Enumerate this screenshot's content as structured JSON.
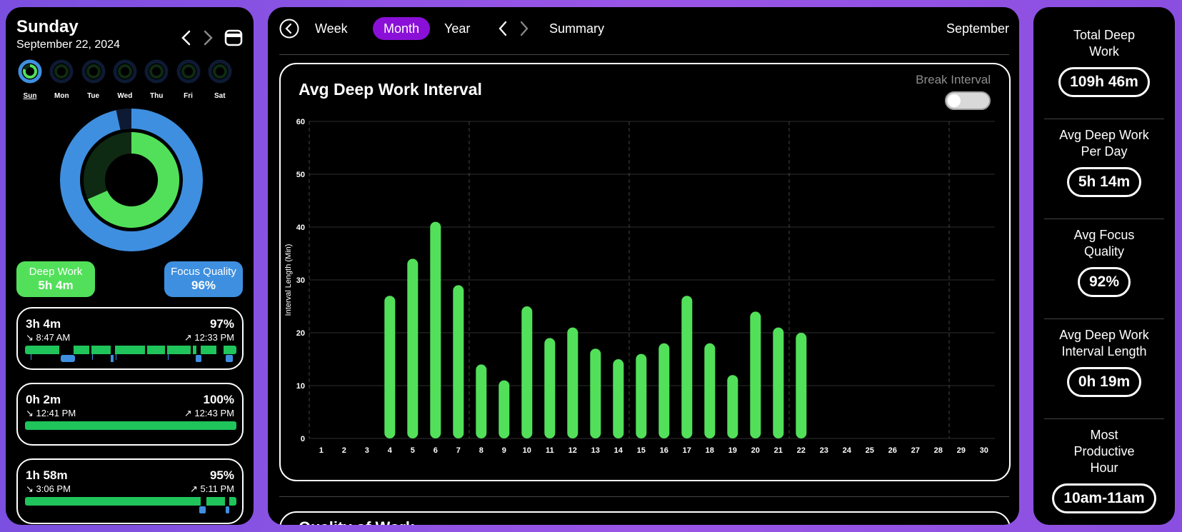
{
  "left": {
    "day_name": "Sunday",
    "date": "September 22, 2024",
    "week": [
      {
        "label": "Sun",
        "active": true
      },
      {
        "label": "Mon",
        "active": false
      },
      {
        "label": "Tue",
        "active": false
      },
      {
        "label": "Wed",
        "active": false
      },
      {
        "label": "Thu",
        "active": false
      },
      {
        "label": "Fri",
        "active": false
      },
      {
        "label": "Sat",
        "active": false
      }
    ],
    "deep_work": {
      "label": "Deep Work",
      "value": "5h 4m"
    },
    "focus_quality": {
      "label": "Focus Quality",
      "value": "96%"
    },
    "sessions": [
      {
        "duration": "3h 4m",
        "percent": "97%",
        "start": "↘ 8:47 AM",
        "end": "↗ 12:33 PM"
      },
      {
        "duration": "0h 2m",
        "percent": "100%",
        "start": "↘ 12:41 PM",
        "end": "↗ 12:43 PM"
      },
      {
        "duration": "1h 58m",
        "percent": "95%",
        "start": "↘ 3:06 PM",
        "end": "↗ 5:11 PM"
      }
    ]
  },
  "main": {
    "tabs": [
      "Week",
      "Month",
      "Year"
    ],
    "active_tab": "Month",
    "summary_label": "Summary",
    "month": "September",
    "card_title": "Avg Deep Work Interval",
    "toggle_label": "Break Interval",
    "second_card_title": "Quality of Work"
  },
  "chart_data": {
    "type": "bar",
    "title": "Avg Deep Work Interval",
    "ylabel": "Interval Length (Min)",
    "xlabel": "",
    "ylim": [
      0,
      60
    ],
    "yticks": [
      0,
      10,
      20,
      30,
      40,
      50,
      60
    ],
    "grid": true,
    "categories": [
      "1",
      "2",
      "3",
      "4",
      "5",
      "6",
      "7",
      "8",
      "9",
      "10",
      "11",
      "12",
      "13",
      "14",
      "15",
      "16",
      "17",
      "18",
      "19",
      "20",
      "21",
      "22",
      "23",
      "24",
      "25",
      "26",
      "27",
      "28",
      "29",
      "30"
    ],
    "values": [
      0,
      0,
      0,
      27,
      34,
      41,
      29,
      14,
      11,
      25,
      19,
      21,
      17,
      15,
      16,
      18,
      27,
      18,
      12,
      24,
      21,
      20,
      0,
      0,
      0,
      0,
      0,
      0,
      0,
      0
    ],
    "bar_color": "#52e05a"
  },
  "right": {
    "stats": [
      {
        "label_lines": [
          "Total Deep",
          "Work"
        ],
        "value": "109h 46m"
      },
      {
        "label_lines": [
          "Avg Deep Work",
          "Per Day"
        ],
        "value": "5h 14m"
      },
      {
        "label_lines": [
          "Avg Focus",
          "Quality"
        ],
        "value": "92%"
      },
      {
        "label_lines": [
          "Avg Deep Work",
          "Interval Length"
        ],
        "value": "0h 19m"
      },
      {
        "label_lines": [
          "Most",
          "Productive",
          "Hour"
        ],
        "value": "10am-11am"
      }
    ]
  },
  "colors": {
    "green": "#52e05a",
    "blue": "#3e8fe0",
    "accent": "#8a10d8",
    "dark_green": "#0f2a12"
  }
}
